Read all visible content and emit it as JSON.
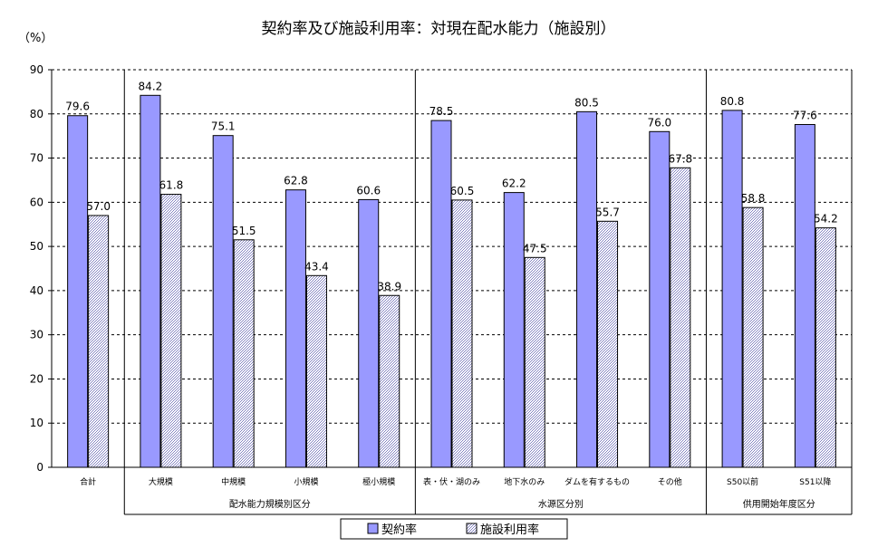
{
  "chart_data": {
    "type": "bar",
    "title": "契約率及び施設利用率：対現在配水能力（施設別）",
    "unit_label": "（%）",
    "ylim": [
      0,
      90
    ],
    "yticks": [
      0,
      10,
      20,
      30,
      40,
      50,
      60,
      70,
      80,
      90
    ],
    "grid": true,
    "categories": [
      "合計",
      "大規模",
      "中規模",
      "小規模",
      "極小規模",
      "表・伏・湖のみ",
      "地下水のみ",
      "ダムを有するもの",
      "その他",
      "S50以前",
      "S51以降"
    ],
    "series": [
      {
        "name": "契約率",
        "color": "#9999ff",
        "values": [
          79.6,
          84.2,
          75.1,
          62.8,
          60.6,
          78.5,
          62.2,
          80.5,
          76.0,
          80.8,
          77.6
        ],
        "labels": [
          "79.6",
          "84.2",
          "75.1",
          "62.8",
          "60.6",
          "78.5",
          "62.2",
          "80.5",
          "76.0",
          "80.8",
          "77.6"
        ]
      },
      {
        "name": "施設利用率",
        "color": "#d8d8f0",
        "values": [
          57.0,
          61.8,
          51.5,
          43.4,
          38.9,
          60.5,
          47.5,
          55.7,
          67.8,
          58.8,
          54.2
        ],
        "labels": [
          "57.0",
          "61.8",
          "51.5",
          "43.4",
          "38.9",
          "60.5",
          "47.5",
          "55.7",
          "67.8",
          "58.8",
          "54.2"
        ]
      }
    ],
    "groups": [
      {
        "label": "配水能力規模別区分",
        "start": 1,
        "end": 4
      },
      {
        "label": "水源区分別",
        "start": 5,
        "end": 8
      },
      {
        "label": "供用開始年度区分",
        "start": 9,
        "end": 10
      }
    ],
    "legend_position": "bottom-center"
  }
}
